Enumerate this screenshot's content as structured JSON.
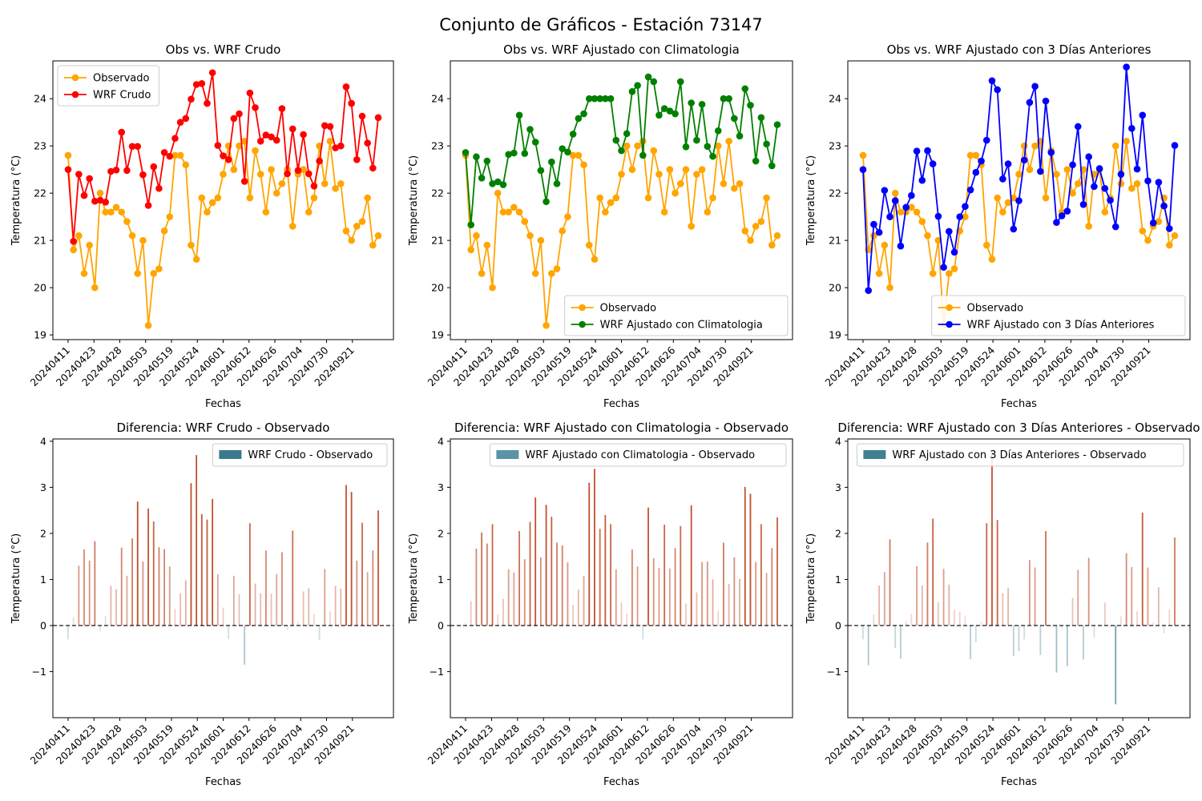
{
  "figure": {
    "suptitle": "Conjunto de Gráficos - Estación 73147"
  },
  "colors": {
    "observed": "#ffa500",
    "wrf_raw": "#ff0000",
    "wrf_clim": "#008000",
    "wrf_3d": "#0000ff",
    "diff_positive": "#c0502e",
    "diff_negative": "#3a7a8c",
    "legend_patch_raw": "#3a7a8c",
    "legend_patch_clim": "#5a93a6",
    "legend_patch_3d": "#3f8191"
  },
  "chart_data": [
    {
      "type": "line",
      "title": "Obs vs. WRF Crudo",
      "xlabel": "Fechas",
      "ylabel": "Temperatura (°C)",
      "ylim": [
        18.9,
        24.8
      ],
      "yticks": [
        19,
        20,
        21,
        22,
        23,
        24
      ],
      "xtick_labels": [
        "20240411",
        "20240423",
        "20240428",
        "20240503",
        "20240519",
        "20240524",
        "20240601",
        "20240612",
        "20240626",
        "20240704",
        "20240730",
        "20240921"
      ],
      "legend_loc": "upper left",
      "series": [
        {
          "name": "Observado",
          "color_key": "observed",
          "values": [
            22.8,
            20.8,
            21.1,
            20.3,
            20.9,
            20.0,
            22.0,
            21.6,
            21.6,
            21.7,
            21.6,
            21.4,
            21.1,
            20.3,
            21.0,
            19.2,
            20.3,
            20.4,
            21.2,
            21.5,
            22.8,
            22.8,
            22.6,
            20.9,
            20.6,
            21.9,
            21.6,
            21.8,
            21.9,
            22.4,
            23.0,
            22.5,
            23.0,
            23.1,
            21.9,
            22.9,
            22.4,
            21.6,
            22.5,
            22.0,
            22.2,
            22.5,
            21.3,
            22.4,
            22.5,
            21.6,
            21.9,
            23.0,
            22.2,
            23.1,
            22.1,
            22.2,
            21.2,
            21.0,
            21.3,
            21.4,
            21.9,
            20.9,
            21.1
          ]
        },
        {
          "name": "WRF Crudo",
          "color_key": "wrf_raw",
          "values": [
            22.5,
            20.98,
            22.4,
            21.95,
            22.31,
            21.83,
            21.85,
            21.81,
            22.46,
            22.49,
            23.29,
            22.48,
            22.99,
            22.99,
            22.39,
            21.74,
            22.56,
            22.1,
            22.86,
            22.78,
            23.16,
            23.5,
            23.58,
            23.99,
            24.3,
            24.32,
            23.9,
            24.55,
            23.01,
            22.79,
            22.71,
            23.58,
            23.68,
            22.25,
            24.12,
            23.81,
            23.1,
            23.23,
            23.19,
            23.12,
            23.79,
            22.41,
            23.36,
            22.48,
            23.24,
            22.41,
            22.15,
            22.68,
            23.43,
            23.41,
            22.96,
            23.0,
            24.25,
            23.9,
            22.71,
            23.63,
            23.06,
            22.53,
            23.6
          ]
        }
      ]
    },
    {
      "type": "line",
      "title": "Obs vs. WRF Ajustado con Climatologia",
      "xlabel": "Fechas",
      "ylabel": "Temperatura (°C)",
      "ylim": [
        18.9,
        24.8
      ],
      "yticks": [
        19,
        20,
        21,
        22,
        23,
        24
      ],
      "xtick_labels": [
        "20240411",
        "20240423",
        "20240428",
        "20240503",
        "20240519",
        "20240524",
        "20240601",
        "20240612",
        "20240626",
        "20240704",
        "20240730",
        "20240921"
      ],
      "legend_loc": "lower right",
      "series": [
        {
          "name": "Observado",
          "color_key": "observed",
          "values": [
            22.8,
            20.8,
            21.1,
            20.3,
            20.9,
            20.0,
            22.0,
            21.6,
            21.6,
            21.7,
            21.6,
            21.4,
            21.1,
            20.3,
            21.0,
            19.2,
            20.3,
            20.4,
            21.2,
            21.5,
            22.8,
            22.8,
            22.6,
            20.9,
            20.6,
            21.9,
            21.6,
            21.8,
            21.9,
            22.4,
            23.0,
            22.5,
            23.0,
            23.1,
            21.9,
            22.9,
            22.4,
            21.6,
            22.5,
            22.0,
            22.2,
            22.5,
            21.3,
            22.4,
            22.5,
            21.6,
            21.9,
            23.0,
            22.2,
            23.1,
            22.1,
            22.2,
            21.2,
            21.0,
            21.3,
            21.4,
            21.9,
            20.9,
            21.1
          ]
        },
        {
          "name": "WRF Ajustado con Climatologia",
          "color_key": "wrf_clim",
          "values": [
            22.86,
            21.33,
            22.77,
            22.32,
            22.68,
            22.2,
            22.24,
            22.18,
            22.82,
            22.85,
            23.65,
            22.84,
            23.35,
            23.08,
            22.48,
            21.82,
            22.66,
            22.2,
            22.94,
            22.87,
            23.25,
            23.58,
            23.68,
            24.0,
            24.0,
            24.0,
            24.0,
            24.0,
            23.12,
            22.9,
            23.26,
            24.15,
            24.28,
            22.8,
            24.46,
            24.36,
            23.65,
            23.79,
            23.74,
            23.68,
            24.36,
            22.98,
            23.91,
            23.12,
            23.88,
            22.99,
            22.78,
            23.32,
            24.0,
            24.0,
            23.58,
            23.21,
            24.21,
            23.86,
            22.68,
            23.6,
            23.04,
            22.58,
            23.45
          ]
        }
      ]
    },
    {
      "type": "line",
      "title": "Obs vs. WRF Ajustado con 3 Días Anteriores",
      "xlabel": "Fechas",
      "ylabel": "Temperatura (°C)",
      "ylim": [
        18.9,
        24.8
      ],
      "yticks": [
        19,
        20,
        21,
        22,
        23,
        24
      ],
      "xtick_labels": [
        "20240411",
        "20240423",
        "20240428",
        "20240503",
        "20240519",
        "20240524",
        "20240601",
        "20240612",
        "20240626",
        "20240704",
        "20240730",
        "20240921"
      ],
      "legend_loc": "lower right",
      "series": [
        {
          "name": "Observado",
          "color_key": "observed",
          "values": [
            22.8,
            20.8,
            21.1,
            20.3,
            20.9,
            20.0,
            22.0,
            21.6,
            21.6,
            21.7,
            21.6,
            21.4,
            21.1,
            20.3,
            21.0,
            19.2,
            20.3,
            20.4,
            21.2,
            21.5,
            22.8,
            22.8,
            22.6,
            20.9,
            20.6,
            21.9,
            21.6,
            21.8,
            21.9,
            22.4,
            23.0,
            22.5,
            23.0,
            23.1,
            21.9,
            22.9,
            22.4,
            21.6,
            22.5,
            22.0,
            22.2,
            22.5,
            21.3,
            22.4,
            22.5,
            21.6,
            21.9,
            23.0,
            22.2,
            23.1,
            22.1,
            22.2,
            21.2,
            21.0,
            21.3,
            21.4,
            21.9,
            20.9,
            21.1
          ]
        },
        {
          "name": "WRF Ajustado con 3 Días Anteriores",
          "color_key": "wrf_3d",
          "values": [
            22.5,
            19.94,
            21.34,
            21.17,
            22.06,
            21.5,
            21.84,
            20.88,
            21.7,
            21.95,
            22.89,
            22.27,
            22.9,
            22.62,
            21.51,
            20.43,
            21.19,
            20.75,
            21.5,
            21.72,
            22.07,
            22.44,
            22.68,
            23.12,
            24.38,
            24.19,
            22.3,
            22.62,
            21.24,
            21.84,
            22.7,
            23.92,
            24.26,
            22.46,
            23.95,
            22.86,
            21.38,
            21.52,
            21.62,
            22.6,
            23.41,
            21.76,
            22.77,
            22.14,
            22.52,
            22.1,
            21.85,
            21.29,
            22.4,
            24.67,
            23.37,
            22.51,
            23.65,
            22.26,
            21.37,
            22.23,
            21.73,
            21.25,
            23.01
          ]
        }
      ]
    },
    {
      "type": "bar",
      "title": "Diferencia: WRF Crudo - Observado",
      "xlabel": "Fechas",
      "ylabel": "Temperatura (°C)",
      "ylim": [
        -2.0,
        4.05
      ],
      "yticks": [
        -1,
        0,
        1,
        2,
        3,
        4
      ],
      "xtick_labels": [
        "20240411",
        "20240423",
        "20240428",
        "20240503",
        "20240519",
        "20240524",
        "20240601",
        "20240612",
        "20240626",
        "20240704",
        "20240730",
        "20240921"
      ],
      "legend_loc": "upper right",
      "series": [
        {
          "name": "WRF Crudo - Observado",
          "legend_color_key": "legend_patch_raw",
          "values": [
            -0.3,
            0.18,
            1.3,
            1.65,
            1.41,
            1.83,
            -0.12,
            0.21,
            0.86,
            0.79,
            1.69,
            1.08,
            1.89,
            2.69,
            1.39,
            2.54,
            2.26,
            1.7,
            1.66,
            1.28,
            0.36,
            0.7,
            0.98,
            3.09,
            3.7,
            2.42,
            2.3,
            2.75,
            1.11,
            0.39,
            -0.29,
            1.08,
            0.68,
            -0.85,
            2.22,
            0.91,
            0.7,
            1.63,
            0.69,
            1.12,
            1.59,
            -0.09,
            2.06,
            0.08,
            0.74,
            0.81,
            0.25,
            -0.32,
            1.23,
            0.31,
            0.86,
            0.8,
            3.05,
            2.9,
            1.41,
            2.23,
            1.16,
            1.63,
            2.5
          ]
        }
      ]
    },
    {
      "type": "bar",
      "title": "Diferencia: WRF Ajustado con Climatologia - Observado",
      "xlabel": "Fechas",
      "ylabel": "Temperatura (°C)",
      "ylim": [
        -2.0,
        4.05
      ],
      "yticks": [
        -1,
        0,
        1,
        2,
        3,
        4
      ],
      "xtick_labels": [
        "20240411",
        "20240423",
        "20240428",
        "20240503",
        "20240519",
        "20240524",
        "20240601",
        "20240612",
        "20240626",
        "20240704",
        "20240730",
        "20240921"
      ],
      "legend_loc": "upper right",
      "series": [
        {
          "name": "WRF Ajustado con Climatologia - Observado",
          "legend_color_key": "legend_patch_clim",
          "values": [
            0.06,
            0.53,
            1.67,
            2.02,
            1.78,
            2.2,
            0.24,
            0.58,
            1.22,
            1.15,
            2.05,
            1.44,
            2.25,
            2.78,
            1.48,
            2.62,
            2.36,
            1.8,
            1.74,
            1.37,
            0.45,
            0.78,
            1.08,
            3.1,
            3.4,
            2.1,
            2.4,
            2.2,
            1.22,
            0.5,
            0.26,
            1.65,
            1.28,
            -0.3,
            2.56,
            1.46,
            1.25,
            2.19,
            1.24,
            1.68,
            2.16,
            0.48,
            2.61,
            0.72,
            1.38,
            1.39,
            1.0,
            0.32,
            1.8,
            0.9,
            1.48,
            1.01,
            3.01,
            2.86,
            1.38,
            2.2,
            1.14,
            1.68,
            2.35
          ]
        }
      ]
    },
    {
      "type": "bar",
      "title": "Diferencia: WRF Ajustado con 3 Días Anteriores - Observado",
      "xlabel": "Fechas",
      "ylabel": "Temperatura (°C)",
      "ylim": [
        -2.0,
        4.05
      ],
      "yticks": [
        -1,
        0,
        1,
        2,
        3,
        4
      ],
      "xtick_labels": [
        "20240411",
        "20240423",
        "20240428",
        "20240503",
        "20240519",
        "20240524",
        "20240601",
        "20240612",
        "20240626",
        "20240704",
        "20240730",
        "20240921"
      ],
      "legend_loc": "upper right",
      "series": [
        {
          "name": "WRF Ajustado con 3 Días Anteriores - Observado",
          "legend_color_key": "legend_patch_3d",
          "values": [
            -0.3,
            -0.86,
            0.24,
            0.87,
            1.16,
            1.87,
            -0.49,
            -0.72,
            0.1,
            0.25,
            1.29,
            0.87,
            1.8,
            2.32,
            0.51,
            1.23,
            0.89,
            0.35,
            0.3,
            0.22,
            -0.73,
            -0.36,
            0.08,
            2.22,
            3.78,
            2.29,
            0.7,
            0.82,
            -0.66,
            -0.56,
            -0.3,
            1.42,
            1.26,
            -0.64,
            2.05,
            -0.04,
            -1.02,
            -0.08,
            -0.88,
            0.6,
            1.21,
            -0.74,
            1.47,
            -0.26,
            0.02,
            0.5,
            -0.05,
            -1.71,
            0.2,
            1.57,
            1.27,
            0.31,
            2.45,
            1.26,
            0.07,
            0.83,
            -0.17,
            0.35,
            1.91
          ]
        }
      ]
    }
  ]
}
